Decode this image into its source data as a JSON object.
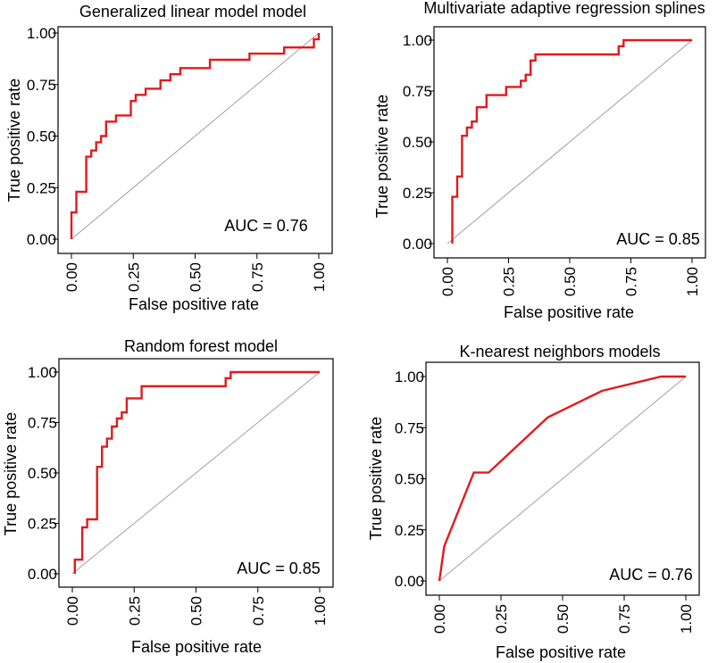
{
  "colors": {
    "roc": "#e31a1c",
    "diagonal": "#a0a0a0",
    "frame": "#000000"
  },
  "chart_data": [
    {
      "type": "line",
      "title": "Generalized linear model  model",
      "xlabel": "False positive rate",
      "ylabel": "True positive rate",
      "xlim": [
        0,
        1
      ],
      "ylim": [
        0,
        1
      ],
      "ticks": [
        "0.00",
        "0.25",
        "0.50",
        "0.75",
        "1.00"
      ],
      "auc": "AUC = 0.76",
      "series": [
        {
          "name": "ROC",
          "points": [
            [
              0,
              0
            ],
            [
              0,
              0.13
            ],
            [
              0.02,
              0.13
            ],
            [
              0.02,
              0.23
            ],
            [
              0.06,
              0.23
            ],
            [
              0.06,
              0.4
            ],
            [
              0.08,
              0.4
            ],
            [
              0.08,
              0.43
            ],
            [
              0.1,
              0.43
            ],
            [
              0.1,
              0.47
            ],
            [
              0.12,
              0.47
            ],
            [
              0.12,
              0.5
            ],
            [
              0.14,
              0.5
            ],
            [
              0.14,
              0.57
            ],
            [
              0.18,
              0.57
            ],
            [
              0.18,
              0.6
            ],
            [
              0.24,
              0.6
            ],
            [
              0.24,
              0.67
            ],
            [
              0.26,
              0.67
            ],
            [
              0.26,
              0.7
            ],
            [
              0.3,
              0.7
            ],
            [
              0.3,
              0.73
            ],
            [
              0.34,
              0.73
            ],
            [
              0.34,
              0.73
            ],
            [
              0.36,
              0.73
            ],
            [
              0.36,
              0.77
            ],
            [
              0.4,
              0.77
            ],
            [
              0.4,
              0.8
            ],
            [
              0.44,
              0.8
            ],
            [
              0.44,
              0.83
            ],
            [
              0.56,
              0.83
            ],
            [
              0.56,
              0.87
            ],
            [
              0.72,
              0.87
            ],
            [
              0.72,
              0.9
            ],
            [
              0.86,
              0.9
            ],
            [
              0.86,
              0.93
            ],
            [
              0.98,
              0.93
            ],
            [
              0.98,
              0.97
            ],
            [
              1.0,
              0.97
            ],
            [
              1.0,
              1.0
            ]
          ]
        }
      ]
    },
    {
      "type": "line",
      "title": "Multivariate adaptive regression splines",
      "xlabel": "False positive rate",
      "ylabel": "True positive rate",
      "xlim": [
        0,
        1
      ],
      "ylim": [
        0,
        1
      ],
      "ticks": [
        "0.00",
        "0.25",
        "0.50",
        "0.75",
        "1.00"
      ],
      "auc": "AUC = 0.85",
      "series": [
        {
          "name": "ROC",
          "points": [
            [
              0.02,
              0
            ],
            [
              0.02,
              0.23
            ],
            [
              0.04,
              0.23
            ],
            [
              0.04,
              0.33
            ],
            [
              0.06,
              0.33
            ],
            [
              0.06,
              0.53
            ],
            [
              0.08,
              0.53
            ],
            [
              0.08,
              0.57
            ],
            [
              0.1,
              0.57
            ],
            [
              0.1,
              0.6
            ],
            [
              0.12,
              0.6
            ],
            [
              0.12,
              0.67
            ],
            [
              0.16,
              0.67
            ],
            [
              0.16,
              0.73
            ],
            [
              0.24,
              0.73
            ],
            [
              0.24,
              0.77
            ],
            [
              0.3,
              0.77
            ],
            [
              0.3,
              0.8
            ],
            [
              0.32,
              0.8
            ],
            [
              0.32,
              0.83
            ],
            [
              0.34,
              0.83
            ],
            [
              0.34,
              0.9
            ],
            [
              0.36,
              0.9
            ],
            [
              0.36,
              0.93
            ],
            [
              0.7,
              0.93
            ],
            [
              0.7,
              0.97
            ],
            [
              0.72,
              0.97
            ],
            [
              0.72,
              1.0
            ],
            [
              1.0,
              1.0
            ]
          ]
        }
      ]
    },
    {
      "type": "line",
      "title": "Random forest model",
      "xlabel": "False positive rate",
      "ylabel": "True positive rate",
      "xlim": [
        0,
        1
      ],
      "ylim": [
        0,
        1
      ],
      "ticks": [
        "0.00",
        "0.25",
        "0.50",
        "0.75",
        "1.00"
      ],
      "auc": "AUC = 0.85",
      "series": [
        {
          "name": "ROC",
          "points": [
            [
              0.01,
              0
            ],
            [
              0.01,
              0.07
            ],
            [
              0.04,
              0.07
            ],
            [
              0.04,
              0.23
            ],
            [
              0.06,
              0.23
            ],
            [
              0.06,
              0.27
            ],
            [
              0.1,
              0.27
            ],
            [
              0.1,
              0.53
            ],
            [
              0.12,
              0.53
            ],
            [
              0.12,
              0.63
            ],
            [
              0.14,
              0.63
            ],
            [
              0.14,
              0.67
            ],
            [
              0.16,
              0.67
            ],
            [
              0.16,
              0.73
            ],
            [
              0.18,
              0.73
            ],
            [
              0.18,
              0.77
            ],
            [
              0.2,
              0.77
            ],
            [
              0.2,
              0.8
            ],
            [
              0.22,
              0.8
            ],
            [
              0.22,
              0.87
            ],
            [
              0.26,
              0.87
            ],
            [
              0.26,
              0.87
            ],
            [
              0.28,
              0.87
            ],
            [
              0.28,
              0.93
            ],
            [
              0.62,
              0.93
            ],
            [
              0.62,
              0.97
            ],
            [
              0.64,
              0.97
            ],
            [
              0.64,
              1.0
            ],
            [
              1.0,
              1.0
            ]
          ]
        }
      ]
    },
    {
      "type": "line",
      "title": "K-nearest neighbors models",
      "xlabel": "False positive rate",
      "ylabel": "True positive rate",
      "xlim": [
        0,
        1
      ],
      "ylim": [
        0,
        1
      ],
      "ticks": [
        "0.00",
        "0.25",
        "0.50",
        "0.75",
        "1.00"
      ],
      "auc": "AUC = 0.76",
      "series": [
        {
          "name": "ROC",
          "points": [
            [
              0,
              0
            ],
            [
              0.02,
              0.17
            ],
            [
              0.14,
              0.53
            ],
            [
              0.2,
              0.53
            ],
            [
              0.44,
              0.8
            ],
            [
              0.66,
              0.93
            ],
            [
              0.9,
              1.0
            ],
            [
              1.0,
              1.0
            ]
          ]
        }
      ]
    }
  ]
}
